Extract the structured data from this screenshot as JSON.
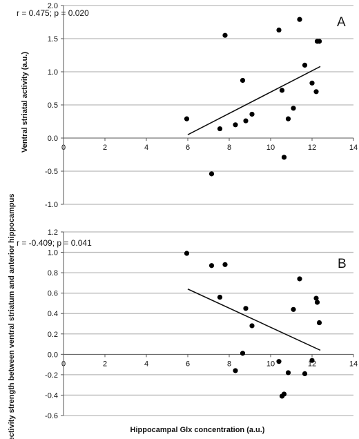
{
  "xlabel": "Hippocampal  Glx concentration (a.u.)",
  "chart_data": [
    {
      "type": "scatter",
      "panel_label": "A",
      "stats_text": "r = 0.475;  p = 0.020",
      "xlabel": "",
      "ylabel": "Ventral striatal activity (a.u.)",
      "xlim": [
        0,
        14
      ],
      "ylim": [
        -1.0,
        2.0
      ],
      "xticks": [
        0,
        2,
        4,
        6,
        8,
        10,
        12,
        14
      ],
      "xtick_labels": [
        "0",
        "2",
        "4",
        "6",
        "8",
        "10",
        "12",
        "14"
      ],
      "yticks": [
        -1.0,
        -0.5,
        0.0,
        0.5,
        1.0,
        1.5,
        2.0
      ],
      "ytick_labels": [
        "-1.0",
        "-0.5",
        "0.0",
        "0.5",
        "1.0",
        "1.5",
        "2.0"
      ],
      "grid": true,
      "x": [
        5.95,
        7.15,
        7.55,
        7.8,
        8.3,
        8.65,
        8.8,
        9.1,
        10.4,
        10.55,
        10.65,
        10.85,
        11.1,
        11.4,
        11.65,
        12.0,
        12.2,
        12.25,
        12.35
      ],
      "y": [
        0.29,
        -0.54,
        0.14,
        1.55,
        0.2,
        0.87,
        0.26,
        0.36,
        1.63,
        0.72,
        -0.29,
        0.29,
        0.45,
        1.79,
        1.1,
        0.83,
        0.7,
        1.46,
        1.46
      ],
      "trendline": {
        "x": [
          6.0,
          12.4
        ],
        "y": [
          0.05,
          1.08
        ]
      }
    },
    {
      "type": "scatter",
      "panel_label": "B",
      "stats_text": "r = -0.409;  p = 0.041",
      "xlabel": "Hippocampal  Glx concentration (a.u.)",
      "ylabel": "Connectivity strength between ventral striatum and anterior hippocampus",
      "xlim": [
        0,
        14
      ],
      "ylim": [
        -0.6,
        1.2
      ],
      "xticks": [
        0,
        2,
        4,
        6,
        8,
        10,
        12,
        14
      ],
      "xtick_labels": [
        "0",
        "2",
        "4",
        "6",
        "8",
        "10",
        "12",
        "14"
      ],
      "yticks": [
        -0.6,
        -0.4,
        -0.2,
        0.0,
        0.2,
        0.4,
        0.6,
        0.8,
        1.0,
        1.2
      ],
      "ytick_labels": [
        "-0.6",
        "-0.4",
        "-0.2",
        "0.0",
        "0.2",
        "0.4",
        "0.6",
        "0.8",
        "1.0",
        "1.2"
      ],
      "grid": true,
      "x": [
        5.95,
        7.15,
        7.55,
        7.8,
        8.3,
        8.65,
        8.8,
        9.1,
        10.4,
        10.55,
        10.65,
        10.85,
        11.1,
        11.4,
        11.65,
        12.0,
        12.2,
        12.25,
        12.35
      ],
      "y": [
        0.99,
        0.87,
        0.56,
        0.88,
        -0.16,
        0.01,
        0.45,
        0.28,
        -0.07,
        -0.41,
        -0.39,
        -0.18,
        0.44,
        0.74,
        -0.19,
        -0.06,
        0.55,
        0.51,
        0.31
      ],
      "trendline": {
        "x": [
          6.0,
          12.4
        ],
        "y": [
          0.64,
          0.04
        ]
      }
    }
  ]
}
